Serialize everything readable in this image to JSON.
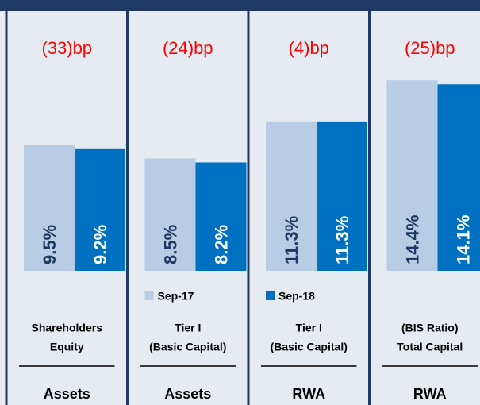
{
  "chart_data": {
    "type": "bar",
    "categories": [
      [
        "Shareholders",
        "Equity"
      ],
      [
        "Tier I",
        "(Basic Capital)"
      ],
      [
        "Tier I",
        "(Basic Capital)"
      ],
      [
        "(BIS Ratio)",
        "Total Capital"
      ]
    ],
    "denominators": [
      "Assets",
      "Assets",
      "RWA",
      "RWA"
    ],
    "annotations": [
      "(33)bp",
      "(24)bp",
      "(4)bp",
      "(25)bp"
    ],
    "annotation_color": "#ff0000",
    "series": [
      {
        "name": "Sep-17",
        "color": "#b8cce4",
        "label_color": "#1f3864",
        "values": [
          9.5,
          8.5,
          11.3,
          14.4
        ],
        "value_labels": [
          "9.5%",
          "8.5%",
          "11.3%",
          "14.4%"
        ]
      },
      {
        "name": "Sep-18",
        "color": "#0070c0",
        "label_color": "#ffffff",
        "values": [
          9.2,
          8.2,
          11.3,
          14.1
        ],
        "value_labels": [
          "9.2%",
          "8.2%",
          "11.3%",
          "14.1%"
        ]
      }
    ],
    "ylim": [
      0,
      20
    ]
  }
}
